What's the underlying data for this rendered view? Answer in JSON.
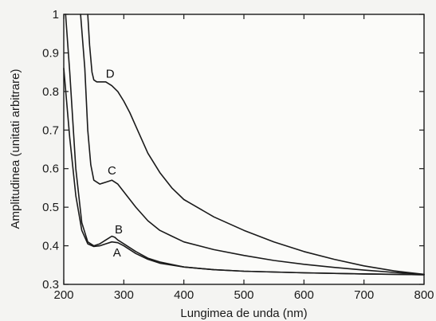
{
  "chart_data": {
    "type": "line",
    "title": "",
    "xlabel": "Lungimea de unda (nm)",
    "ylabel": "Amplitudinea (unitati arbitrare)",
    "xlim": [
      200,
      800
    ],
    "ylim": [
      0.3,
      1.0
    ],
    "x_ticks": [
      200,
      300,
      400,
      500,
      600,
      700,
      800
    ],
    "y_ticks": [
      0.3,
      0.4,
      0.5,
      0.6,
      0.7,
      0.8,
      0.9,
      1
    ],
    "y_tick_labels": [
      "0.3",
      "0.4",
      "0.5",
      "0.6",
      "0.7",
      "0.8",
      "0.9",
      "1"
    ],
    "grid": false,
    "legend": "none",
    "line_color": "#1a1a1a",
    "series": [
      {
        "name": "A",
        "x": [
          200,
          210,
          220,
          230,
          240,
          250,
          260,
          270,
          280,
          290,
          300,
          320,
          340,
          360,
          400,
          450,
          500,
          550,
          600,
          700,
          800
        ],
        "y": [
          0.86,
          0.68,
          0.53,
          0.44,
          0.405,
          0.398,
          0.4,
          0.405,
          0.41,
          0.408,
          0.4,
          0.38,
          0.365,
          0.355,
          0.345,
          0.338,
          0.334,
          0.332,
          0.33,
          0.327,
          0.325
        ]
      },
      {
        "name": "B",
        "x": [
          203,
          210,
          220,
          230,
          240,
          250,
          260,
          270,
          275,
          280,
          285,
          290,
          300,
          320,
          340,
          360,
          400,
          450,
          500,
          600,
          700,
          800
        ],
        "y": [
          1.0,
          0.85,
          0.6,
          0.46,
          0.41,
          0.4,
          0.405,
          0.415,
          0.42,
          0.425,
          0.422,
          0.415,
          0.405,
          0.385,
          0.368,
          0.358,
          0.345,
          0.338,
          0.334,
          0.33,
          0.327,
          0.325
        ]
      },
      {
        "name": "C",
        "x": [
          228,
          235,
          240,
          245,
          250,
          260,
          270,
          280,
          290,
          300,
          320,
          340,
          360,
          380,
          400,
          450,
          500,
          550,
          600,
          650,
          700,
          750,
          800
        ],
        "y": [
          1.0,
          0.86,
          0.7,
          0.61,
          0.57,
          0.56,
          0.565,
          0.57,
          0.56,
          0.54,
          0.5,
          0.465,
          0.44,
          0.425,
          0.41,
          0.39,
          0.375,
          0.362,
          0.352,
          0.344,
          0.337,
          0.331,
          0.326
        ]
      },
      {
        "name": "D",
        "x": [
          240,
          243,
          247,
          250,
          255,
          260,
          270,
          280,
          290,
          300,
          310,
          320,
          340,
          360,
          380,
          400,
          450,
          500,
          550,
          600,
          650,
          700,
          750,
          800
        ],
        "y": [
          1.0,
          0.92,
          0.85,
          0.83,
          0.825,
          0.825,
          0.825,
          0.815,
          0.8,
          0.775,
          0.745,
          0.71,
          0.64,
          0.59,
          0.55,
          0.52,
          0.475,
          0.44,
          0.41,
          0.385,
          0.365,
          0.348,
          0.335,
          0.326
        ]
      }
    ],
    "curve_labels": [
      {
        "text": "A",
        "x": 282,
        "y": 0.372
      },
      {
        "text": "B",
        "x": 285,
        "y": 0.432
      },
      {
        "text": "C",
        "x": 273,
        "y": 0.585
      },
      {
        "text": "D",
        "x": 270,
        "y": 0.836
      }
    ]
  }
}
